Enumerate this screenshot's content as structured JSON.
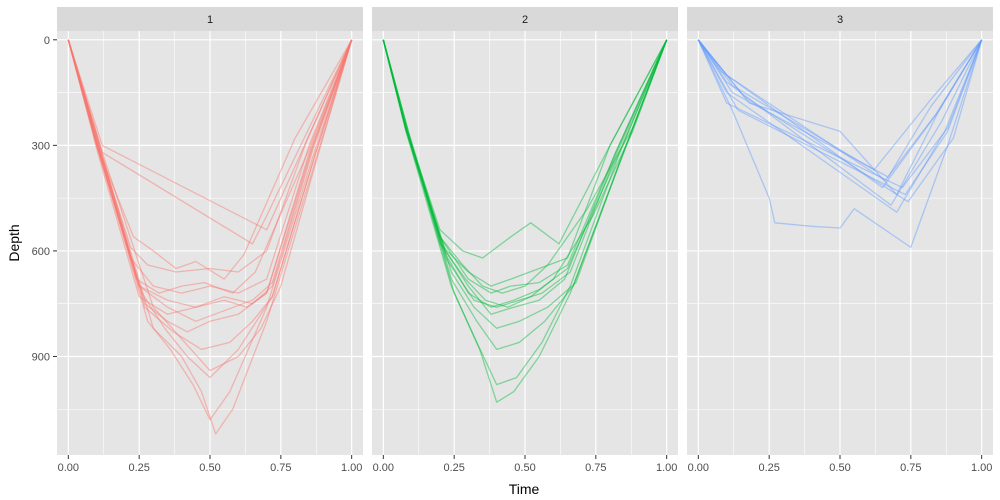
{
  "chart_data": {
    "type": "line",
    "xlabel": "Time",
    "ylabel": "Depth",
    "xlim": [
      -0.04,
      1.04
    ],
    "ylim": [
      1180,
      -25
    ],
    "y_reversed": true,
    "x_ticks": [
      0,
      0.25,
      0.5,
      0.75,
      1
    ],
    "x_tick_labels": [
      "0.00",
      "0.25",
      "0.50",
      "0.75",
      "1.00"
    ],
    "y_ticks": [
      0,
      300,
      600,
      900
    ],
    "y_tick_labels": [
      "0",
      "300",
      "600",
      "900"
    ],
    "grid": true,
    "legend": "none",
    "panel_background": "#e5e5e5",
    "strip_background": "#d9d9d9",
    "gridline_color": "#ffffff",
    "panels": [
      {
        "label": "1",
        "color": "#F8766D",
        "series": [
          {
            "x": [
              0,
              0.1,
              0.22,
              0.3,
              0.4,
              0.5,
              0.6,
              0.7,
              0.85,
              1
            ],
            "y": [
              0,
              300,
              620,
              700,
              720,
              700,
              720,
              680,
              300,
              0
            ]
          },
          {
            "x": [
              0,
              0.1,
              0.25,
              0.35,
              0.45,
              0.55,
              0.65,
              0.72,
              0.86,
              1
            ],
            "y": [
              0,
              290,
              700,
              740,
              760,
              730,
              750,
              700,
              320,
              0
            ]
          },
          {
            "x": [
              0,
              0.11,
              0.27,
              0.35,
              0.42,
              0.5,
              0.6,
              0.7,
              0.85,
              1
            ],
            "y": [
              0,
              310,
              750,
              800,
              830,
              800,
              780,
              720,
              330,
              0
            ]
          },
          {
            "x": [
              0,
              0.1,
              0.24,
              0.32,
              0.4,
              0.48,
              0.58,
              0.66,
              0.85,
              1
            ],
            "y": [
              0,
              300,
              680,
              720,
              700,
              690,
              720,
              660,
              310,
              0
            ]
          },
          {
            "x": [
              0,
              0.12,
              0.3,
              0.4,
              0.47,
              0.52,
              0.58,
              0.7,
              0.87,
              1
            ],
            "y": [
              0,
              330,
              820,
              900,
              1000,
              1120,
              1050,
              800,
              350,
              0
            ]
          },
          {
            "x": [
              0,
              0.11,
              0.28,
              0.36,
              0.44,
              0.5,
              0.57,
              0.7,
              0.86,
              1
            ],
            "y": [
              0,
              320,
              800,
              880,
              980,
              1080,
              1000,
              760,
              340,
              0
            ]
          },
          {
            "x": [
              0,
              0.1,
              0.26,
              0.34,
              0.42,
              0.5,
              0.6,
              0.72,
              0.87,
              1
            ],
            "y": [
              0,
              300,
              720,
              820,
              900,
              960,
              880,
              730,
              330,
              0
            ]
          },
          {
            "x": [
              0,
              0.12,
              0.3,
              0.4,
              0.5,
              0.6,
              0.68,
              0.75,
              0.88,
              1
            ],
            "y": [
              0,
              320,
              760,
              850,
              940,
              900,
              820,
              700,
              330,
              0
            ]
          },
          {
            "x": [
              0,
              0.1,
              0.23,
              0.3,
              0.38,
              0.45,
              0.55,
              0.62,
              0.8,
              1
            ],
            "y": [
              0,
              300,
              560,
              600,
              650,
              630,
              680,
              610,
              280,
              0
            ]
          },
          {
            "x": [
              0,
              0.1,
              0.22,
              0.28,
              0.38,
              0.5,
              0.6,
              0.7,
              0.84,
              1
            ],
            "y": [
              0,
              290,
              590,
              640,
              660,
              650,
              660,
              600,
              290,
              0
            ]
          },
          {
            "x": [
              0,
              0.11,
              0.25,
              0.35,
              0.45,
              0.55,
              0.65,
              0.72,
              0.86,
              1
            ],
            "y": [
              0,
              300,
              700,
              760,
              800,
              770,
              740,
              690,
              310,
              0
            ]
          },
          {
            "x": [
              0,
              0.12,
              0.7,
              1
            ],
            "y": [
              0,
              300,
              540,
              0
            ]
          },
          {
            "x": [
              0,
              0.12,
              0.65,
              0.7,
              1
            ],
            "y": [
              0,
              320,
              580,
              500,
              0
            ]
          },
          {
            "x": [
              0,
              0.1,
              0.25,
              0.35,
              0.45,
              0.55,
              0.63,
              0.7,
              0.85,
              1
            ],
            "y": [
              0,
              310,
              730,
              780,
              760,
              740,
              760,
              720,
              320,
              0
            ]
          },
          {
            "x": [
              0,
              0.11,
              0.27,
              0.37,
              0.47,
              0.57,
              0.65,
              0.72,
              0.87,
              1
            ],
            "y": [
              0,
              310,
              760,
              830,
              880,
              860,
              800,
              730,
              330,
              0
            ]
          }
        ]
      },
      {
        "label": "2",
        "color": "#00BA38",
        "series": [
          {
            "x": [
              0,
              0.08,
              0.2,
              0.3,
              0.38,
              0.45,
              0.55,
              0.65,
              0.82,
              1
            ],
            "y": [
              0,
              250,
              560,
              680,
              720,
              700,
              690,
              640,
              320,
              0
            ]
          },
          {
            "x": [
              0,
              0.08,
              0.22,
              0.32,
              0.4,
              0.48,
              0.56,
              0.66,
              0.82,
              1
            ],
            "y": [
              0,
              260,
              620,
              740,
              760,
              740,
              720,
              660,
              330,
              0
            ]
          },
          {
            "x": [
              0,
              0.09,
              0.25,
              0.34,
              0.4,
              0.46,
              0.55,
              0.66,
              0.84,
              1
            ],
            "y": [
              0,
              270,
              720,
              880,
              1030,
              1000,
              900,
              720,
              340,
              0
            ]
          },
          {
            "x": [
              0,
              0.08,
              0.24,
              0.33,
              0.4,
              0.47,
              0.56,
              0.66,
              0.83,
              1
            ],
            "y": [
              0,
              260,
              700,
              860,
              980,
              960,
              860,
              700,
              330,
              0
            ]
          },
          {
            "x": [
              0,
              0.08,
              0.2,
              0.28,
              0.35,
              0.45,
              0.52,
              0.62,
              0.8,
              1
            ],
            "y": [
              0,
              250,
              540,
              600,
              620,
              560,
              520,
              580,
              300,
              0
            ]
          },
          {
            "x": [
              0,
              0.08,
              0.22,
              0.3,
              0.38,
              0.46,
              0.55,
              0.64,
              0.82,
              1
            ],
            "y": [
              0,
              255,
              600,
              700,
              780,
              760,
              740,
              680,
              320,
              0
            ]
          },
          {
            "x": [
              0,
              0.09,
              0.24,
              0.32,
              0.4,
              0.48,
              0.58,
              0.68,
              0.84,
              1
            ],
            "y": [
              0,
              265,
              660,
              760,
              820,
              800,
              760,
              690,
              335,
              0
            ]
          },
          {
            "x": [
              0,
              0.08,
              0.2,
              0.3,
              0.38,
              0.45,
              0.55,
              0.65,
              0.8,
              1
            ],
            "y": [
              0,
              250,
              580,
              660,
              700,
              680,
              650,
              620,
              300,
              0
            ]
          },
          {
            "x": [
              0,
              0.08,
              0.22,
              0.3,
              0.38,
              0.46,
              0.55,
              0.65,
              0.83,
              1
            ],
            "y": [
              0,
              255,
              610,
              720,
              760,
              740,
              710,
              650,
              325,
              0
            ]
          },
          {
            "x": [
              0,
              0.09,
              0.24,
              0.33,
              0.4,
              0.48,
              0.57,
              0.67,
              0.84,
              1
            ],
            "y": [
              0,
              265,
              680,
              800,
              880,
              860,
              800,
              700,
              335,
              0
            ]
          },
          {
            "x": [
              0,
              0.08,
              0.2,
              0.28,
              0.35,
              0.42,
              0.5,
              0.58,
              0.72,
              0.88,
              1
            ],
            "y": [
              0,
              250,
              560,
              640,
              700,
              720,
              700,
              640,
              480,
              250,
              0
            ]
          },
          {
            "x": [
              0,
              0.08,
              0.21,
              0.29,
              0.36,
              0.44,
              0.52,
              0.6,
              0.74,
              0.88,
              1
            ],
            "y": [
              0,
              252,
              590,
              680,
              740,
              760,
              730,
              680,
              500,
              260,
              0
            ]
          }
        ]
      },
      {
        "label": "3",
        "color": "#619CFF",
        "series": [
          {
            "x": [
              0,
              0.12,
              0.25,
              0.27,
              0.4,
              0.5,
              0.55,
              0.75,
              0.88,
              1
            ],
            "y": [
              0,
              200,
              450,
              520,
              530,
              535,
              480,
              590,
              300,
              0
            ]
          },
          {
            "x": [
              0,
              0.1,
              0.65,
              0.85,
              1
            ],
            "y": [
              0,
              100,
              420,
              200,
              0
            ]
          },
          {
            "x": [
              0,
              0.1,
              0.68,
              0.86,
              1
            ],
            "y": [
              0,
              120,
              470,
              230,
              0
            ]
          },
          {
            "x": [
              0,
              0.1,
              0.7,
              0.87,
              1
            ],
            "y": [
              0,
              150,
              490,
              260,
              0
            ]
          },
          {
            "x": [
              0,
              0.12,
              0.62,
              0.82,
              1
            ],
            "y": [
              0,
              130,
              370,
              170,
              0
            ]
          },
          {
            "x": [
              0,
              0.1,
              0.72,
              0.88,
              1
            ],
            "y": [
              0,
              180,
              420,
              250,
              0
            ]
          },
          {
            "x": [
              0,
              0.14,
              0.73,
              0.88,
              1
            ],
            "y": [
              0,
              200,
              440,
              260,
              0
            ]
          },
          {
            "x": [
              0,
              0.12,
              0.67,
              0.82,
              1
            ],
            "y": [
              0,
              150,
              390,
              190,
              0
            ]
          },
          {
            "x": [
              0,
              0.08,
              0.66,
              0.84,
              1
            ],
            "y": [
              0,
              90,
              400,
              210,
              0
            ]
          },
          {
            "x": [
              0,
              0.16,
              0.74,
              0.9,
              1
            ],
            "y": [
              0,
              160,
              460,
              280,
              0
            ]
          },
          {
            "x": [
              0,
              0.18,
              0.5,
              0.7,
              0.85,
              1
            ],
            "y": [
              0,
              180,
              260,
              440,
              200,
              0
            ]
          }
        ]
      }
    ]
  }
}
